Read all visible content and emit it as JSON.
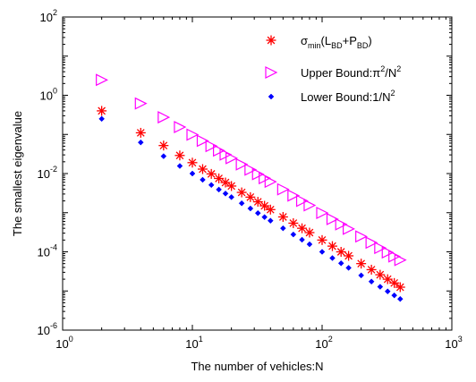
{
  "chart_data": {
    "type": "scatter",
    "title": "",
    "xlabel": "The number of vehicles:N",
    "ylabel": "The smallest eigenvalue",
    "xscale": "log",
    "yscale": "log",
    "xlim": [
      1,
      1000
    ],
    "ylim": [
      1e-06,
      100
    ],
    "grid": false,
    "legend_position": "top-right",
    "x_ticks": [
      {
        "base": "10",
        "exp": "0"
      },
      {
        "base": "10",
        "exp": "1"
      },
      {
        "base": "10",
        "exp": "2"
      },
      {
        "base": "10",
        "exp": "3"
      }
    ],
    "y_ticks": [
      {
        "base": "10",
        "exp": "-6"
      },
      {
        "base": "10",
        "exp": "-4"
      },
      {
        "base": "10",
        "exp": "-2"
      },
      {
        "base": "10",
        "exp": "0"
      },
      {
        "base": "10",
        "exp": "2"
      }
    ],
    "x": [
      2,
      4,
      6,
      8,
      10,
      12,
      14,
      16,
      18,
      20,
      24,
      28,
      32,
      36,
      40,
      50,
      60,
      70,
      80,
      100,
      120,
      140,
      160,
      200,
      240,
      280,
      320,
      360,
      400
    ],
    "series": [
      {
        "legend_main": "σ",
        "legend_sub1": "min",
        "legend_mid": "(L",
        "legend_sub2": "BD",
        "legend_mid2": "+P",
        "legend_sub3": "BD",
        "legend_end": ")",
        "marker": "asterisk",
        "color": "#ff0000",
        "values": [
          0.4,
          0.11,
          0.052,
          0.029,
          0.019,
          0.013,
          0.0098,
          0.0075,
          0.0059,
          0.0048,
          0.0033,
          0.0025,
          0.0019,
          0.0015,
          0.0012,
          0.00078,
          0.00054,
          0.0004,
          0.00031,
          0.0002,
          0.00014,
          0.0001,
          7.9e-05,
          5e-05,
          3.5e-05,
          2.6e-05,
          2e-05,
          1.6e-05,
          1.25e-05
        ]
      },
      {
        "legend_main": "Upper Bound:π",
        "legend_sup1": "2",
        "legend_mid": "/N",
        "legend_sup2": "2",
        "marker": "triangle-right",
        "color": "#ff00ff",
        "values": [
          2.47,
          0.617,
          0.274,
          0.154,
          0.0987,
          0.0685,
          0.0504,
          0.0386,
          0.0305,
          0.0247,
          0.0171,
          0.0126,
          0.00964,
          0.00762,
          0.00617,
          0.00395,
          0.00274,
          0.00201,
          0.00154,
          0.000987,
          0.000685,
          0.000504,
          0.000386,
          0.000247,
          0.000171,
          0.000126,
          9.64e-05,
          7.62e-05,
          6.17e-05
        ]
      },
      {
        "legend_main": "Lower Bound:1/N",
        "legend_sup1": "2",
        "marker": "diamond",
        "color": "#0000ff",
        "values": [
          0.25,
          0.0625,
          0.0278,
          0.0156,
          0.01,
          0.00694,
          0.0051,
          0.0039,
          0.00309,
          0.0025,
          0.00174,
          0.00128,
          0.000977,
          0.000772,
          0.000625,
          0.0004,
          0.000278,
          0.000204,
          0.000156,
          0.0001,
          6.94e-05,
          5.1e-05,
          3.9e-05,
          2.5e-05,
          1.74e-05,
          1.28e-05,
          9.77e-06,
          7.72e-06,
          6.25e-06
        ]
      }
    ]
  }
}
